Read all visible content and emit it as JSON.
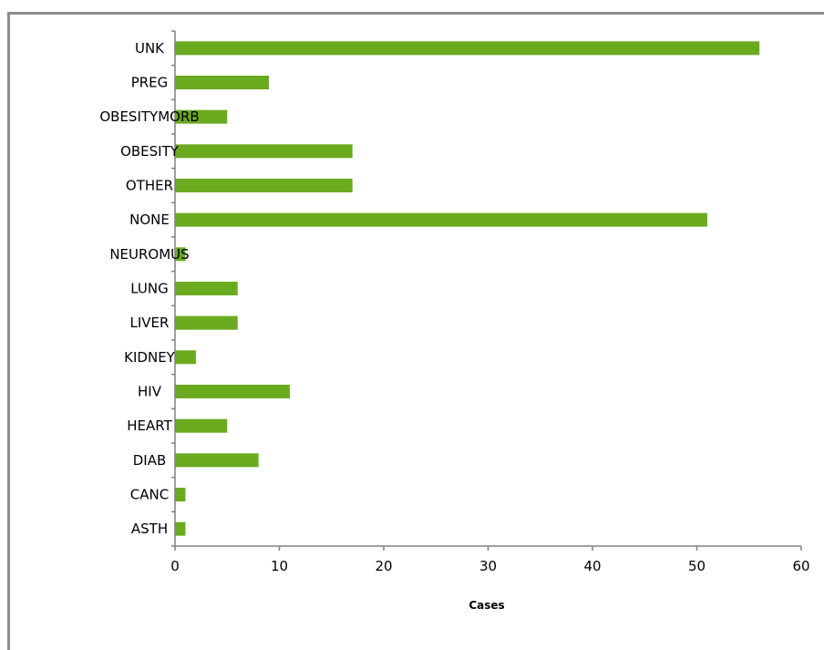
{
  "chart_data": {
    "type": "bar",
    "orientation": "horizontal",
    "categories": [
      "ASTH",
      "CANC",
      "DIAB",
      "HEART",
      "HIV",
      "KIDNEY",
      "LIVER",
      "LUNG",
      "NEUROMUS",
      "NONE",
      "OTHER",
      "OBESITY",
      "OBESITYMORB",
      "PREG",
      "UNK"
    ],
    "values": [
      1,
      1,
      8,
      5,
      11,
      2,
      6,
      6,
      1,
      51,
      17,
      17,
      5,
      9,
      56
    ],
    "title": "",
    "xlabel": "Cases",
    "ylabel": "",
    "xlim": [
      0,
      60
    ],
    "x_ticks": [
      0,
      10,
      20,
      30,
      40,
      50,
      60
    ],
    "grid": false,
    "legend": "none",
    "bar_color": "#6aaa1e"
  }
}
